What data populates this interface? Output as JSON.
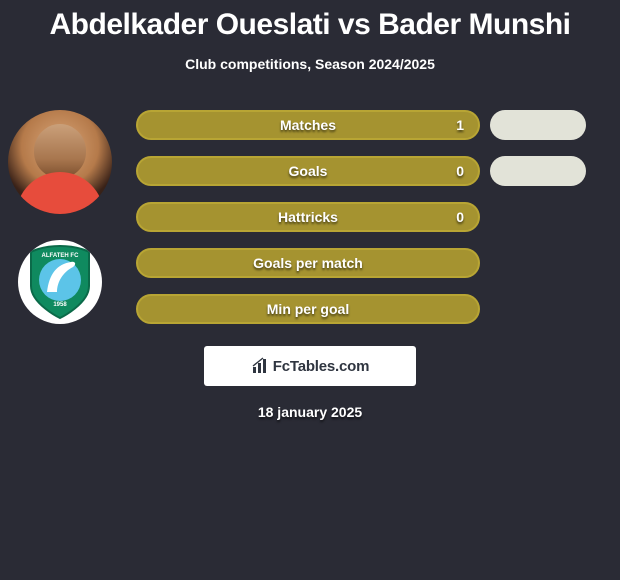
{
  "title": "Abdelkader Oueslati vs Bader Munshi",
  "subtitle": "Club competitions, Season 2024/2025",
  "stats": [
    {
      "label": "Matches",
      "value": "1",
      "has_pill": true
    },
    {
      "label": "Goals",
      "value": "0",
      "has_pill": true
    },
    {
      "label": "Hattricks",
      "value": "0",
      "has_pill": false
    },
    {
      "label": "Goals per match",
      "value": "",
      "has_pill": false
    },
    {
      "label": "Min per goal",
      "value": "",
      "has_pill": false
    }
  ],
  "colors": {
    "background": "#2a2b35",
    "bar_fill": "#a59330",
    "bar_border": "#b8a534",
    "pill_fill": "#e2e3d8",
    "text": "#ffffff"
  },
  "club_badge": {
    "shield_color": "#0f8a5f",
    "shield_border": "#0b6a49",
    "inner_color": "#5cc4e8",
    "swoosh_color": "#ffffff",
    "name": "ALFATEH FC",
    "year": "1958"
  },
  "attribution": "FcTables.com",
  "date": "18 january 2025"
}
